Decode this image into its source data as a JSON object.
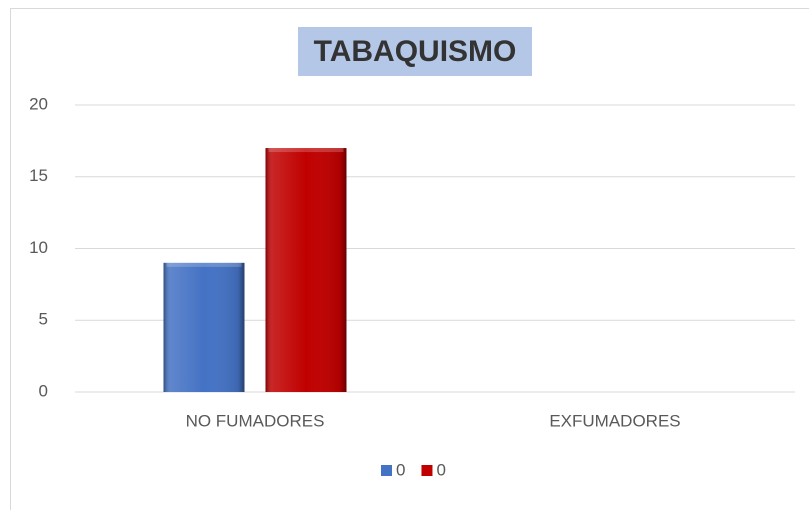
{
  "chart_data": {
    "type": "bar",
    "title": "TABAQUISMO",
    "categories": [
      "NO FUMADORES",
      "EXFUMADORES"
    ],
    "series": [
      {
        "name": "0",
        "color": "#4472c4",
        "values": [
          9,
          null
        ]
      },
      {
        "name": "0",
        "color": "#c00000",
        "values": [
          17,
          null
        ]
      }
    ],
    "ylim": [
      0,
      20
    ],
    "yticks": [
      0,
      5,
      10,
      15,
      20
    ],
    "grid": true,
    "legend": "bottom"
  }
}
